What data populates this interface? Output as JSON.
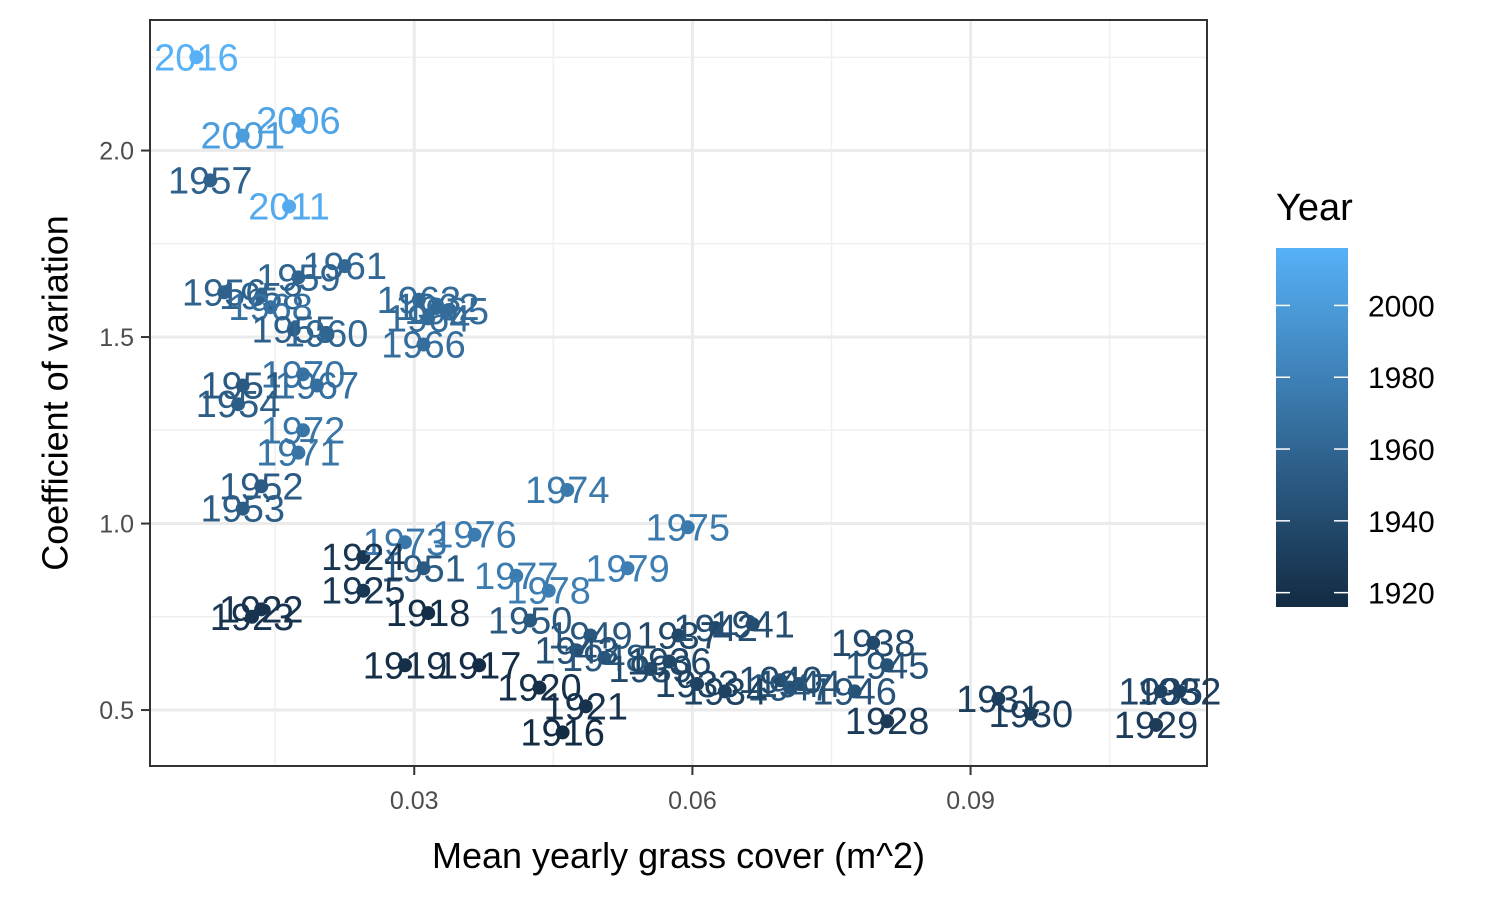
{
  "chart_data": {
    "type": "scatter",
    "xlabel": "Mean yearly grass cover (m^2)",
    "ylabel": "Coefficient of variation",
    "xlim": [
      0.0015,
      0.1155
    ],
    "ylim": [
      0.35,
      2.35
    ],
    "x_ticks": [
      0.03,
      0.06,
      0.09
    ],
    "x_tick_labels": [
      "0.03",
      "0.06",
      "0.09"
    ],
    "y_ticks": [
      0.5,
      1.0,
      1.5,
      2.0
    ],
    "y_tick_labels": [
      "0.5",
      "1.0",
      "1.5",
      "2.0"
    ],
    "grid": true,
    "legend": {
      "title": "Year",
      "position": "right",
      "type": "colorbar",
      "range": [
        1916,
        2016
      ],
      "ticks": [
        1920,
        1940,
        1960,
        1980,
        2000
      ],
      "tick_labels": [
        "1920",
        "1940",
        "1960",
        "1980",
        "2000"
      ],
      "color_low": "#132B43",
      "color_high": "#56B1F7"
    },
    "points": [
      {
        "label": "2016",
        "x": 0.0065,
        "y": 2.25,
        "year": 2016
      },
      {
        "label": "2006",
        "x": 0.0175,
        "y": 2.08,
        "year": 2006
      },
      {
        "label": "2001",
        "x": 0.0115,
        "y": 2.04,
        "year": 2001
      },
      {
        "label": "1957",
        "x": 0.008,
        "y": 1.92,
        "year": 1957
      },
      {
        "label": "2011",
        "x": 0.0165,
        "y": 1.85,
        "year": 2011
      },
      {
        "label": "1961",
        "x": 0.0225,
        "y": 1.69,
        "year": 1961
      },
      {
        "label": "1959",
        "x": 0.0175,
        "y": 1.66,
        "year": 1959
      },
      {
        "label": "1956",
        "x": 0.0095,
        "y": 1.62,
        "year": 1956
      },
      {
        "label": "1958",
        "x": 0.0135,
        "y": 1.61,
        "year": 1958
      },
      {
        "label": "1963",
        "x": 0.0305,
        "y": 1.6,
        "year": 1963
      },
      {
        "label": "1968",
        "x": 0.0145,
        "y": 1.58,
        "year": 1968
      },
      {
        "label": "1962",
        "x": 0.0325,
        "y": 1.58,
        "year": 1962
      },
      {
        "label": "1965",
        "x": 0.0335,
        "y": 1.57,
        "year": 1965
      },
      {
        "label": "1964",
        "x": 0.0315,
        "y": 1.55,
        "year": 1964
      },
      {
        "label": "1955",
        "x": 0.017,
        "y": 1.52,
        "year": 1955
      },
      {
        "label": "1960",
        "x": 0.0205,
        "y": 1.51,
        "year": 1960
      },
      {
        "label": "1966",
        "x": 0.031,
        "y": 1.48,
        "year": 1966
      },
      {
        "label": "1970",
        "x": 0.018,
        "y": 1.4,
        "year": 1970
      },
      {
        "label": "1951",
        "x": 0.0115,
        "y": 1.37,
        "year": 1951
      },
      {
        "label": "1967",
        "x": 0.0195,
        "y": 1.37,
        "year": 1967
      },
      {
        "label": "1954",
        "x": 0.011,
        "y": 1.32,
        "year": 1954
      },
      {
        "label": "1972",
        "x": 0.018,
        "y": 1.25,
        "year": 1972
      },
      {
        "label": "1971",
        "x": 0.0175,
        "y": 1.19,
        "year": 1971
      },
      {
        "label": "1952",
        "x": 0.0135,
        "y": 1.1,
        "year": 1952
      },
      {
        "label": "1974",
        "x": 0.0465,
        "y": 1.09,
        "year": 1974
      },
      {
        "label": "1953",
        "x": 0.0115,
        "y": 1.04,
        "year": 1953
      },
      {
        "label": "1975",
        "x": 0.0595,
        "y": 0.99,
        "year": 1975
      },
      {
        "label": "1976",
        "x": 0.0365,
        "y": 0.97,
        "year": 1976
      },
      {
        "label": "1973",
        "x": 0.029,
        "y": 0.95,
        "year": 1973
      },
      {
        "label": "1924",
        "x": 0.0245,
        "y": 0.91,
        "year": 1924
      },
      {
        "label": "1951",
        "x": 0.031,
        "y": 0.88,
        "year": 1951
      },
      {
        "label": "1979",
        "x": 0.053,
        "y": 0.88,
        "year": 1979
      },
      {
        "label": "1977",
        "x": 0.041,
        "y": 0.86,
        "year": 1977
      },
      {
        "label": "1925",
        "x": 0.0245,
        "y": 0.82,
        "year": 1925
      },
      {
        "label": "1978",
        "x": 0.0445,
        "y": 0.82,
        "year": 1978
      },
      {
        "label": "1922",
        "x": 0.0135,
        "y": 0.77,
        "year": 1922
      },
      {
        "label": "1918",
        "x": 0.0315,
        "y": 0.76,
        "year": 1918
      },
      {
        "label": "1923",
        "x": 0.0125,
        "y": 0.75,
        "year": 1923
      },
      {
        "label": "1950",
        "x": 0.0425,
        "y": 0.74,
        "year": 1950
      },
      {
        "label": "1941",
        "x": 0.0665,
        "y": 0.73,
        "year": 1941
      },
      {
        "label": "1942",
        "x": 0.0625,
        "y": 0.72,
        "year": 1942
      },
      {
        "label": "1949",
        "x": 0.049,
        "y": 0.7,
        "year": 1949
      },
      {
        "label": "1937",
        "x": 0.0585,
        "y": 0.7,
        "year": 1937
      },
      {
        "label": "1938",
        "x": 0.0795,
        "y": 0.68,
        "year": 1938
      },
      {
        "label": "1943",
        "x": 0.0475,
        "y": 0.66,
        "year": 1943
      },
      {
        "label": "1948",
        "x": 0.0505,
        "y": 0.64,
        "year": 1948
      },
      {
        "label": "1936",
        "x": 0.0575,
        "y": 0.63,
        "year": 1936
      },
      {
        "label": "1919",
        "x": 0.029,
        "y": 0.62,
        "year": 1919
      },
      {
        "label": "1917",
        "x": 0.037,
        "y": 0.62,
        "year": 1917
      },
      {
        "label": "1945",
        "x": 0.081,
        "y": 0.62,
        "year": 1945
      },
      {
        "label": "1939",
        "x": 0.0555,
        "y": 0.61,
        "year": 1939
      },
      {
        "label": "1940",
        "x": 0.0695,
        "y": 0.58,
        "year": 1940
      },
      {
        "label": "1944",
        "x": 0.0715,
        "y": 0.57,
        "year": 1944
      },
      {
        "label": "1933",
        "x": 0.0605,
        "y": 0.57,
        "year": 1933
      },
      {
        "label": "1947",
        "x": 0.0705,
        "y": 0.56,
        "year": 1947
      },
      {
        "label": "1920",
        "x": 0.0435,
        "y": 0.56,
        "year": 1920
      },
      {
        "label": "1932",
        "x": 0.1125,
        "y": 0.55,
        "year": 1932
      },
      {
        "label": "1946",
        "x": 0.0775,
        "y": 0.55,
        "year": 1946
      },
      {
        "label": "1934",
        "x": 0.0635,
        "y": 0.55,
        "year": 1934
      },
      {
        "label": "1935",
        "x": 0.1105,
        "y": 0.55,
        "year": 1935
      },
      {
        "label": "1931",
        "x": 0.093,
        "y": 0.53,
        "year": 1931
      },
      {
        "label": "1921",
        "x": 0.0485,
        "y": 0.51,
        "year": 1921
      },
      {
        "label": "1930",
        "x": 0.0965,
        "y": 0.49,
        "year": 1930
      },
      {
        "label": "1928",
        "x": 0.081,
        "y": 0.47,
        "year": 1928
      },
      {
        "label": "1929",
        "x": 0.11,
        "y": 0.46,
        "year": 1929
      },
      {
        "label": "1916",
        "x": 0.046,
        "y": 0.44,
        "year": 1916
      }
    ]
  }
}
